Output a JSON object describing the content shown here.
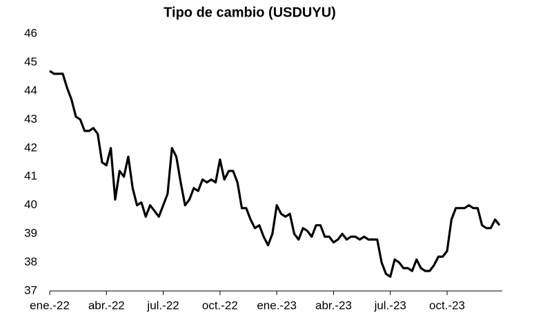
{
  "chart_data": {
    "type": "line",
    "title": "Tipo de cambio (USDUYU)",
    "categories": [
      "ene.-22",
      null,
      null,
      null,
      null,
      null,
      null,
      null,
      null,
      null,
      null,
      null,
      null,
      "abr.-22",
      null,
      null,
      null,
      null,
      null,
      null,
      null,
      null,
      null,
      null,
      null,
      null,
      "jul.-22",
      null,
      null,
      null,
      null,
      null,
      null,
      null,
      null,
      null,
      null,
      null,
      null,
      "oct.-22",
      null,
      null,
      null,
      null,
      null,
      null,
      null,
      null,
      null,
      null,
      null,
      null,
      "ene.-23",
      null,
      null,
      null,
      null,
      null,
      null,
      null,
      null,
      null,
      null,
      null,
      null,
      "abr.-23",
      null,
      null,
      null,
      null,
      null,
      null,
      null,
      null,
      null,
      null,
      null,
      null,
      "jul.-23",
      null,
      null,
      null,
      null,
      null,
      null,
      null,
      null,
      null,
      null,
      null,
      null,
      "oct.-23",
      null,
      null,
      null,
      null,
      null,
      null,
      null,
      null,
      null,
      null,
      null,
      null
    ],
    "values": [
      44.7,
      44.6,
      44.6,
      44.6,
      44.1,
      43.7,
      43.1,
      43.0,
      42.6,
      42.6,
      42.7,
      42.5,
      41.5,
      41.4,
      42.0,
      40.2,
      41.2,
      41.0,
      41.7,
      40.6,
      40.0,
      40.1,
      39.6,
      40.0,
      39.8,
      39.6,
      40.0,
      40.4,
      42.0,
      41.7,
      40.8,
      40.0,
      40.2,
      40.6,
      40.5,
      40.9,
      40.8,
      40.9,
      40.8,
      41.6,
      40.9,
      41.2,
      41.2,
      40.8,
      39.9,
      39.9,
      39.5,
      39.2,
      39.3,
      38.9,
      38.6,
      39.0,
      40.0,
      39.7,
      39.6,
      39.7,
      39.0,
      38.8,
      39.2,
      39.1,
      38.9,
      39.3,
      39.3,
      38.9,
      38.9,
      38.7,
      38.8,
      39.0,
      38.8,
      38.9,
      38.9,
      38.8,
      38.9,
      38.8,
      38.8,
      38.8,
      38.0,
      37.6,
      37.5,
      38.1,
      38.0,
      37.8,
      37.8,
      37.7,
      38.1,
      37.8,
      37.7,
      37.7,
      37.9,
      38.2,
      38.2,
      38.4,
      39.5,
      39.9,
      39.9,
      39.9,
      40.0,
      39.9,
      39.9,
      39.3,
      39.2,
      39.2,
      39.5,
      39.3
    ],
    "color": "#000000",
    "ylim": [
      37,
      46
    ],
    "yticks": [
      37,
      38,
      39,
      40,
      41,
      42,
      43,
      44,
      45,
      46
    ]
  }
}
